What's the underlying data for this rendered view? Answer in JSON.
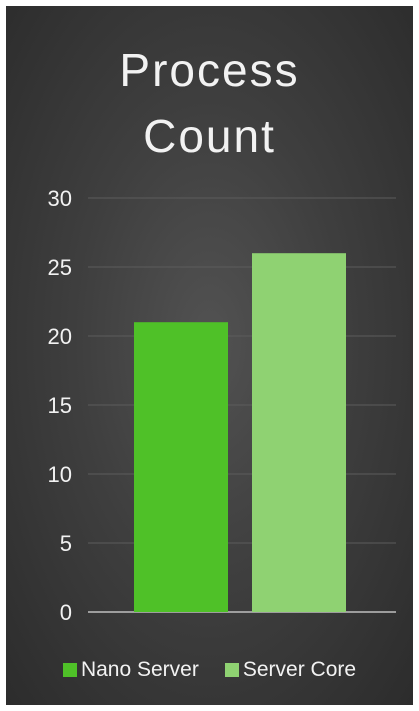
{
  "chart_data": {
    "type": "bar",
    "title_lines": [
      "Process",
      "Count"
    ],
    "categories": [
      "Nano Server",
      "Server Core"
    ],
    "values": [
      21,
      26
    ],
    "colors": [
      "#4fc128",
      "#8fd272"
    ],
    "ylim": [
      0,
      30
    ],
    "yticks": [
      "0",
      "5",
      "10",
      "15",
      "20",
      "25",
      "30"
    ],
    "grid": true,
    "legend_position": "bottom",
    "legend": [
      "Nano Server",
      "Server Core"
    ]
  }
}
